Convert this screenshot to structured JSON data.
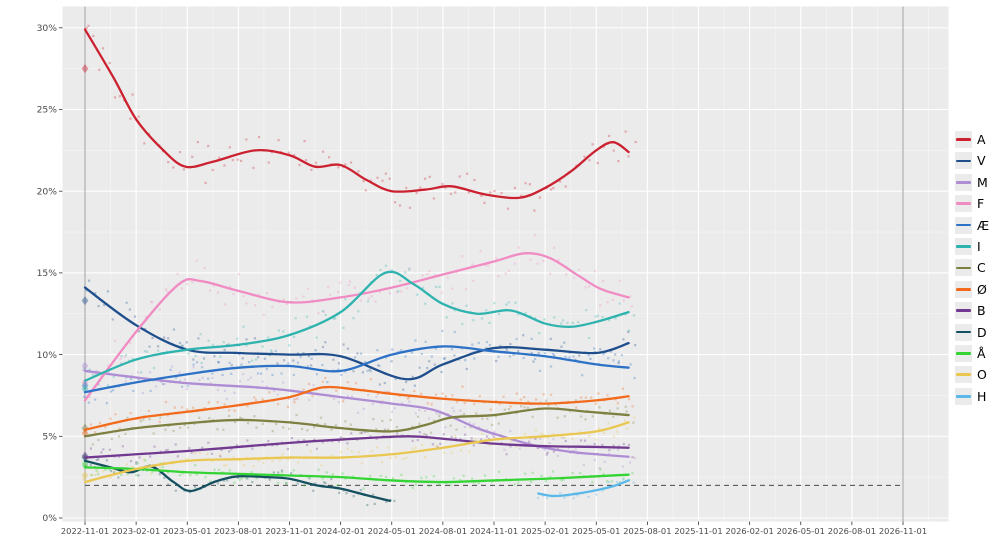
{
  "chart_data": {
    "type": "scatter",
    "title": "",
    "x_axis": {
      "tick_labels": [
        "2022-11-01",
        "2023-02-01",
        "2023-05-01",
        "2023-08-01",
        "2023-11-01",
        "2024-02-01",
        "2024-05-01",
        "2024-08-01",
        "2024-11-01",
        "2025-02-01",
        "2025-05-01",
        "2025-08-01",
        "2025-11-01",
        "2026-02-01",
        "2026-05-01",
        "2026-08-01",
        "2026-11-01"
      ]
    },
    "y_axis": {
      "tick_labels": [
        "0%",
        "5%",
        "10%",
        "15%",
        "20%",
        "25%",
        "30%"
      ],
      "tick_values": [
        0,
        5,
        10,
        15,
        20,
        25,
        30
      ],
      "range": [
        0,
        31.5
      ]
    },
    "threshold_line": {
      "value": 2,
      "style": "dashed"
    },
    "reference_lines_months": [
      0,
      48
    ],
    "legend": {
      "position": "right",
      "entries": [
        "A",
        "V",
        "M",
        "F",
        "Æ",
        "I",
        "C",
        "Ø",
        "B",
        "D",
        "Å",
        "O",
        "H"
      ]
    },
    "series": [
      {
        "name": "A",
        "color": "#cb2130",
        "election_result": 27.5,
        "sigma": 0.9,
        "trend": [
          [
            0,
            29.9
          ],
          [
            1.7,
            26.9
          ],
          [
            3,
            24.4
          ],
          [
            4.6,
            22.5
          ],
          [
            5.9,
            21.5
          ],
          [
            7.5,
            21.8
          ],
          [
            10,
            22.5
          ],
          [
            12,
            22.2
          ],
          [
            13.5,
            21.5
          ],
          [
            15,
            21.6
          ],
          [
            16.5,
            20.7
          ],
          [
            18,
            20.0
          ],
          [
            20,
            20.1
          ],
          [
            21.5,
            20.3
          ],
          [
            23.5,
            19.8
          ],
          [
            25.5,
            19.6
          ],
          [
            27,
            20.2
          ],
          [
            28.5,
            21.2
          ],
          [
            30,
            22.5
          ],
          [
            31,
            23.0
          ],
          [
            31.9,
            22.4
          ]
        ]
      },
      {
        "name": "V",
        "color": "#1e4e8c",
        "election_result": 13.3,
        "sigma": 0.65,
        "trend": [
          [
            0,
            14.1
          ],
          [
            3,
            11.8
          ],
          [
            6,
            10.3
          ],
          [
            9,
            10.1
          ],
          [
            12,
            10.0
          ],
          [
            15,
            9.9
          ],
          [
            18.8,
            8.5
          ],
          [
            21,
            9.4
          ],
          [
            24,
            10.4
          ],
          [
            27,
            10.3
          ],
          [
            30,
            10.1
          ],
          [
            31.9,
            10.7
          ]
        ]
      },
      {
        "name": "M",
        "color": "#ae8dd4",
        "election_result": 9.3,
        "sigma": 0.6,
        "trend": [
          [
            0,
            9.0
          ],
          [
            3,
            8.6
          ],
          [
            6,
            8.25
          ],
          [
            10,
            8.0
          ],
          [
            12,
            7.8
          ],
          [
            15,
            7.4
          ],
          [
            18,
            7.0
          ],
          [
            20.5,
            6.6
          ],
          [
            23,
            5.5
          ],
          [
            24.5,
            5.0
          ],
          [
            26.5,
            4.4
          ],
          [
            28.5,
            4.05
          ],
          [
            30,
            3.9
          ],
          [
            31.9,
            3.75
          ]
        ]
      },
      {
        "name": "F",
        "color": "#f08cc3",
        "election_result": 8.3,
        "sigma": 0.75,
        "trend": [
          [
            0,
            7.2
          ],
          [
            3,
            11.4
          ],
          [
            5.5,
            14.3
          ],
          [
            6.8,
            14.5
          ],
          [
            9,
            13.9
          ],
          [
            12,
            13.2
          ],
          [
            15,
            13.5
          ],
          [
            18,
            14.1
          ],
          [
            21,
            14.9
          ],
          [
            24,
            15.7
          ],
          [
            25.8,
            16.2
          ],
          [
            27.3,
            15.9
          ],
          [
            29,
            14.8
          ],
          [
            30.3,
            14.0
          ],
          [
            31.9,
            13.5
          ]
        ]
      },
      {
        "name": "Æ",
        "color": "#2d72c6",
        "election_result": 8.1,
        "sigma": 0.65,
        "trend": [
          [
            0,
            7.7
          ],
          [
            3,
            8.3
          ],
          [
            6,
            8.8
          ],
          [
            9,
            9.2
          ],
          [
            12,
            9.3
          ],
          [
            15,
            9.0
          ],
          [
            18,
            10.0
          ],
          [
            21,
            10.5
          ],
          [
            24,
            10.2
          ],
          [
            27,
            9.9
          ],
          [
            30,
            9.4
          ],
          [
            31.9,
            9.2
          ]
        ]
      },
      {
        "name": "I",
        "color": "#2fb3ae",
        "election_result": 7.9,
        "sigma": 0.7,
        "trend": [
          [
            0,
            8.4
          ],
          [
            3,
            9.7
          ],
          [
            6,
            10.3
          ],
          [
            9,
            10.6
          ],
          [
            12,
            11.2
          ],
          [
            15,
            12.6
          ],
          [
            17.6,
            15.0
          ],
          [
            19.3,
            14.3
          ],
          [
            21,
            13.1
          ],
          [
            23,
            12.5
          ],
          [
            25,
            12.7
          ],
          [
            27,
            11.9
          ],
          [
            28.5,
            11.7
          ],
          [
            30,
            12.0
          ],
          [
            31.9,
            12.6
          ]
        ]
      },
      {
        "name": "C",
        "color": "#7d8040",
        "election_result": 5.5,
        "sigma": 0.45,
        "trend": [
          [
            0,
            5.0
          ],
          [
            3,
            5.5
          ],
          [
            6,
            5.8
          ],
          [
            9,
            6.0
          ],
          [
            12,
            5.85
          ],
          [
            15,
            5.5
          ],
          [
            18,
            5.3
          ],
          [
            20,
            5.7
          ],
          [
            21.5,
            6.15
          ],
          [
            24,
            6.3
          ],
          [
            27,
            6.7
          ],
          [
            29.5,
            6.5
          ],
          [
            31.9,
            6.3
          ]
        ]
      },
      {
        "name": "Ø",
        "color": "#f26b1d",
        "election_result": 5.2,
        "sigma": 0.5,
        "trend": [
          [
            0,
            5.4
          ],
          [
            3,
            6.1
          ],
          [
            6,
            6.5
          ],
          [
            9,
            6.9
          ],
          [
            12,
            7.4
          ],
          [
            14,
            8.0
          ],
          [
            16,
            7.85
          ],
          [
            18,
            7.6
          ],
          [
            21,
            7.3
          ],
          [
            24,
            7.1
          ],
          [
            27,
            7.0
          ],
          [
            30,
            7.2
          ],
          [
            31.9,
            7.45
          ]
        ]
      },
      {
        "name": "B",
        "color": "#71398f",
        "election_result": 3.8,
        "sigma": 0.42,
        "trend": [
          [
            0,
            3.7
          ],
          [
            3,
            3.9
          ],
          [
            6,
            4.1
          ],
          [
            9,
            4.35
          ],
          [
            12,
            4.6
          ],
          [
            15,
            4.8
          ],
          [
            18.9,
            5.0
          ],
          [
            21,
            4.85
          ],
          [
            24,
            4.55
          ],
          [
            27,
            4.4
          ],
          [
            30,
            4.35
          ],
          [
            31.9,
            4.3
          ]
        ]
      },
      {
        "name": "D",
        "color": "#14505f",
        "election_result": 3.7,
        "sigma": 0.38,
        "trend": [
          [
            0,
            3.5
          ],
          [
            1.5,
            3.1
          ],
          [
            2.7,
            2.8
          ],
          [
            3.9,
            3.15
          ],
          [
            5.2,
            2.2
          ],
          [
            6.2,
            1.65
          ],
          [
            7.7,
            2.25
          ],
          [
            9,
            2.55
          ],
          [
            10.7,
            2.5
          ],
          [
            12,
            2.4
          ],
          [
            13.6,
            2.0
          ],
          [
            15,
            1.8
          ],
          [
            16.5,
            1.4
          ],
          [
            17.9,
            1.05
          ]
        ]
      },
      {
        "name": "Å",
        "color": "#33d433",
        "election_result": 3.3,
        "sigma": 0.4,
        "trend": [
          [
            0,
            3.1
          ],
          [
            3,
            3.0
          ],
          [
            6,
            2.8
          ],
          [
            9,
            2.7
          ],
          [
            12,
            2.6
          ],
          [
            15,
            2.5
          ],
          [
            18,
            2.3
          ],
          [
            21,
            2.2
          ],
          [
            24,
            2.3
          ],
          [
            27,
            2.4
          ],
          [
            30,
            2.55
          ],
          [
            31.9,
            2.65
          ]
        ]
      },
      {
        "name": "O",
        "color": "#e9c751",
        "election_result": 2.6,
        "sigma": 0.45,
        "trend": [
          [
            0,
            2.2
          ],
          [
            3,
            3.0
          ],
          [
            6,
            3.5
          ],
          [
            9,
            3.6
          ],
          [
            12,
            3.7
          ],
          [
            15,
            3.7
          ],
          [
            18,
            3.9
          ],
          [
            21,
            4.3
          ],
          [
            24,
            4.8
          ],
          [
            27,
            5.0
          ],
          [
            30,
            5.3
          ],
          [
            31.9,
            5.85
          ]
        ]
      },
      {
        "name": "H",
        "color": "#5ab9e9",
        "election_result": null,
        "sigma": 0.28,
        "trend": [
          [
            26.6,
            1.5
          ],
          [
            27.5,
            1.35
          ],
          [
            28.6,
            1.45
          ],
          [
            30,
            1.7
          ],
          [
            31,
            1.95
          ],
          [
            31.9,
            2.3
          ]
        ]
      }
    ]
  },
  "colors": {
    "panel_background": "#ebebeb",
    "grid_major": "#ffffff",
    "axis_text": "#4a4a4a",
    "reference_line": "#8a8a8a",
    "threshold_line": "#303030",
    "tick_mark": "#333333"
  }
}
